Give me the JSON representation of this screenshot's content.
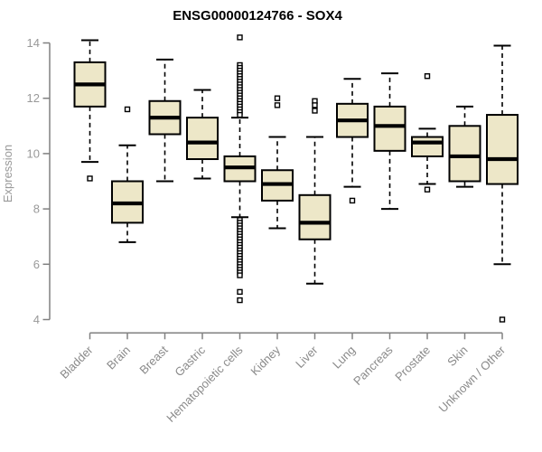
{
  "chart_data": {
    "type": "boxplot",
    "title": "ENSG00000124766 - SOX4",
    "xlabel": "",
    "ylabel": "Expression",
    "ylim": [
      4,
      14.5
    ],
    "yticks": [
      4,
      6,
      8,
      10,
      12,
      14
    ],
    "grid": false,
    "legend": "none",
    "categories": [
      {
        "label": "Bladder",
        "low": 9.7,
        "q1": 11.7,
        "median": 12.5,
        "q3": 13.3,
        "high": 14.1,
        "outliers": [
          9.1
        ]
      },
      {
        "label": "Brain",
        "low": 6.8,
        "q1": 7.5,
        "median": 8.2,
        "q3": 9.0,
        "high": 10.3,
        "outliers": [
          11.6
        ]
      },
      {
        "label": "Breast",
        "low": 9.0,
        "q1": 10.7,
        "median": 11.3,
        "q3": 11.9,
        "high": 13.4,
        "outliers": []
      },
      {
        "label": "Gastric",
        "low": 9.1,
        "q1": 9.8,
        "median": 10.4,
        "q3": 11.3,
        "high": 12.3,
        "outliers": []
      },
      {
        "label": "Hematopoietic cells",
        "low": 7.7,
        "q1": 9.0,
        "median": 9.5,
        "q3": 9.9,
        "high": 11.3,
        "outliers": [
          14.2,
          13.2,
          13.1,
          13.0,
          12.9,
          12.8,
          12.7,
          12.6,
          12.5,
          12.4,
          12.3,
          12.2,
          12.1,
          12.0,
          11.9,
          11.8,
          11.7,
          11.6,
          11.5,
          11.4,
          7.6,
          7.5,
          7.4,
          7.3,
          7.2,
          7.1,
          7.0,
          6.9,
          6.8,
          6.7,
          6.6,
          6.5,
          6.4,
          6.3,
          6.2,
          6.1,
          6.0,
          5.9,
          5.8,
          5.7,
          5.6,
          5.0,
          4.7
        ]
      },
      {
        "label": "Kidney",
        "low": 7.3,
        "q1": 8.3,
        "median": 8.9,
        "q3": 9.4,
        "high": 10.6,
        "outliers": [
          12.0,
          11.75
        ]
      },
      {
        "label": "Liver",
        "low": 5.3,
        "q1": 6.9,
        "median": 7.5,
        "q3": 8.5,
        "high": 10.6,
        "outliers": [
          11.9,
          11.75,
          11.55
        ]
      },
      {
        "label": "Lung",
        "low": 8.8,
        "q1": 10.6,
        "median": 11.2,
        "q3": 11.8,
        "high": 12.7,
        "outliers": [
          8.3
        ]
      },
      {
        "label": "Pancreas",
        "low": 8.0,
        "q1": 10.1,
        "median": 11.0,
        "q3": 11.7,
        "high": 12.9,
        "outliers": []
      },
      {
        "label": "Prostate",
        "low": 8.9,
        "q1": 9.9,
        "median": 10.4,
        "q3": 10.6,
        "high": 10.9,
        "outliers": [
          12.8,
          8.7
        ]
      },
      {
        "label": "Skin",
        "low": 8.8,
        "q1": 9.0,
        "median": 9.9,
        "q3": 11.0,
        "high": 11.7,
        "outliers": []
      },
      {
        "label": "Unknown / Other",
        "low": 6.0,
        "q1": 8.9,
        "median": 9.8,
        "q3": 11.4,
        "high": 13.9,
        "outliers": [
          4.0
        ]
      }
    ],
    "colors": {
      "box_fill": "#EDE7C8",
      "box_stroke": "#000000",
      "median": "#000000",
      "whisker": "#000000",
      "axis_line": "#808080",
      "tick_label": "#999999",
      "category_label": "#8a8a8a",
      "title": "#000000",
      "background": "#ffffff"
    }
  }
}
